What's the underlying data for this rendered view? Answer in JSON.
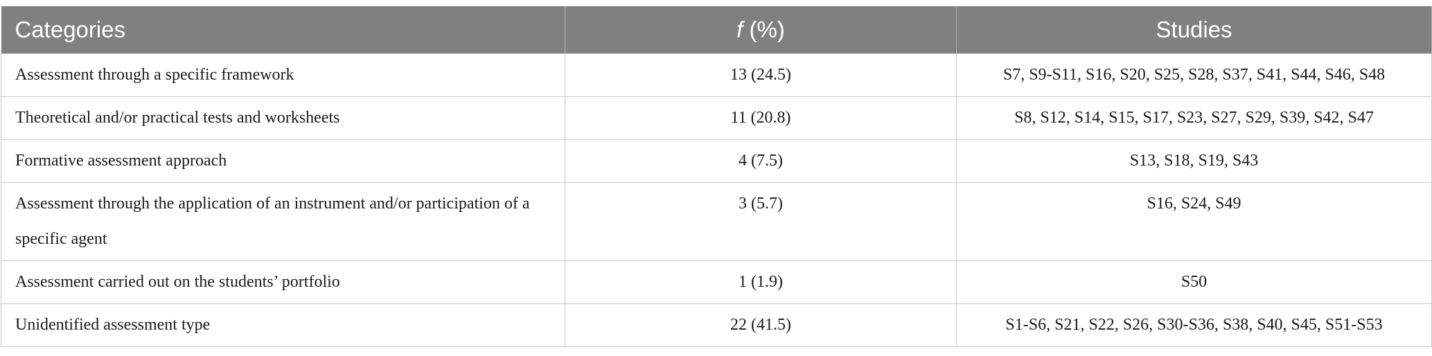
{
  "table": {
    "header": {
      "categories": "Categories",
      "frequency_symbol": "f",
      "frequency_unit": "(%)",
      "studies": "Studies"
    },
    "rows": [
      [
        "Assessment through a specific framework",
        "13 (24.5)",
        "S7, S9-S11, S16, S20, S25, S28, S37, S41, S44, S46, S48"
      ],
      [
        "Theoretical and/or practical tests and worksheets",
        "11 (20.8)",
        "S8, S12, S14, S15, S17, S23, S27, S29, S39, S42, S47"
      ],
      [
        "Formative assessment approach",
        "4 (7.5)",
        "S13, S18, S19, S43"
      ],
      [
        "Assessment through the application of an instrument and/or participation of a specific agent",
        "3 (5.7)",
        "S16, S24, S49"
      ],
      [
        "Assessment carried out on the students’ portfolio",
        "1 (1.9)",
        "S50"
      ],
      [
        "Unidentified assessment type",
        "22 (41.5)",
        "S1-S6, S21, S22, S26, S30-S36, S38, S40, S45, S51-S53"
      ]
    ]
  }
}
